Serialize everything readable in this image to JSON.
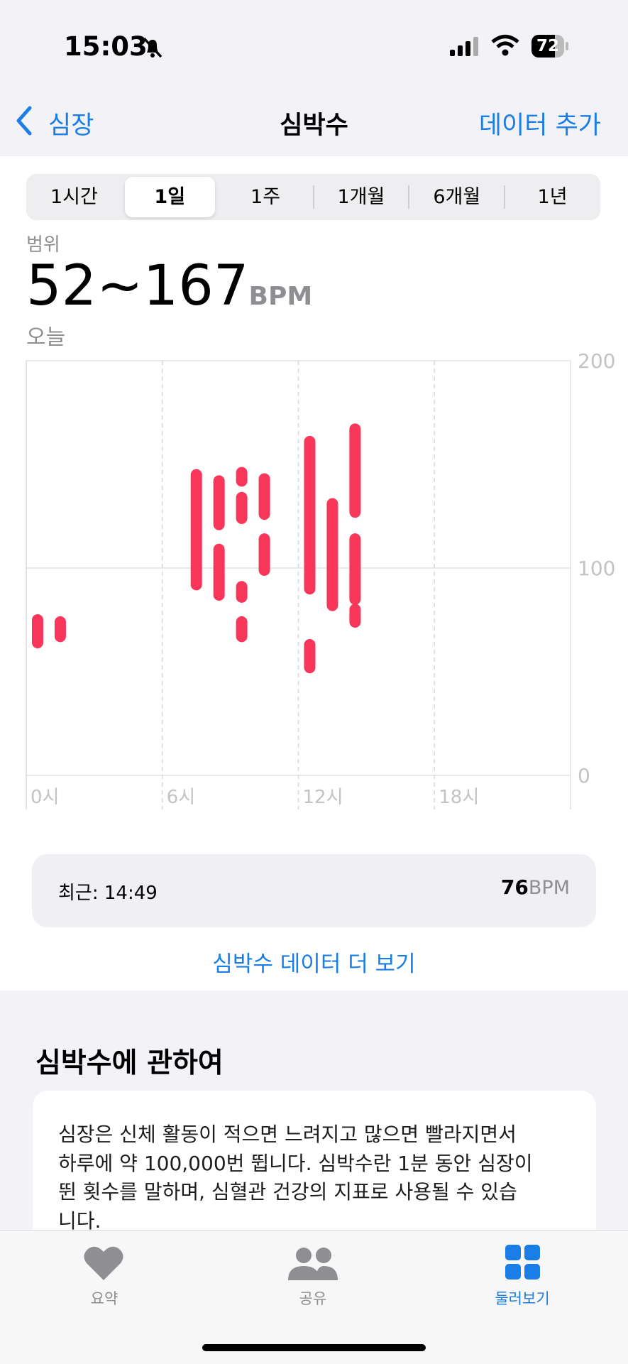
{
  "status": {
    "time": "15:03",
    "battery": "72"
  },
  "nav": {
    "back": "심장",
    "title": "심박수",
    "action": "데이터 추가"
  },
  "segments": {
    "items": [
      "1시간",
      "1일",
      "1주",
      "1개월",
      "6개월",
      "1년"
    ],
    "selected": 1
  },
  "range": {
    "label": "범위",
    "value": "52~167",
    "unit": "BPM",
    "date": "오늘"
  },
  "chart_data": {
    "type": "range_bar",
    "x": [
      0.5,
      1.5,
      7.5,
      8.5,
      8.5,
      9.5,
      9.5,
      9.5,
      9.5,
      10.5,
      10.5,
      12.5,
      12.5,
      13.5,
      14.5,
      14.5,
      14.5
    ],
    "series": [
      {
        "color": "#f7365a",
        "low": [
          64,
          67,
          92,
          121,
          87,
          142,
          124,
          86,
          67,
          126,
          99,
          90,
          52,
          82,
          127,
          85,
          74
        ],
        "high": [
          75,
          74,
          145,
          142,
          109,
          146,
          134,
          91,
          74,
          143,
          114,
          161,
          63,
          131,
          167,
          114,
          80
        ]
      }
    ],
    "xlim": [
      0,
      24
    ],
    "xticks": [
      {
        "value": 0,
        "label": "0시"
      },
      {
        "value": 6,
        "label": "6시"
      },
      {
        "value": 12,
        "label": "12시"
      },
      {
        "value": 18,
        "label": "18시"
      }
    ],
    "ylim": [
      0,
      200
    ],
    "yticks": [
      0,
      100,
      200
    ],
    "grid": true
  },
  "latest": {
    "label": "최근: 14:49",
    "value": "76",
    "unit": "BPM"
  },
  "more_link": "심박수 데이터 더 보기",
  "about": {
    "heading": "심박수에 관하여",
    "lines": [
      "심장은 신체 활동이 적으면 느려지고 많으면 빨라지면서",
      "하루에 약 100,000번 뜁니다. 심박수란 1분 동안 심장이",
      "뛴 횟수를 말하며, 심혈관 건강의 지표로 사용될 수 있습",
      "니다."
    ]
  },
  "tabbar": [
    "요약",
    "공유",
    "둘러보기"
  ]
}
